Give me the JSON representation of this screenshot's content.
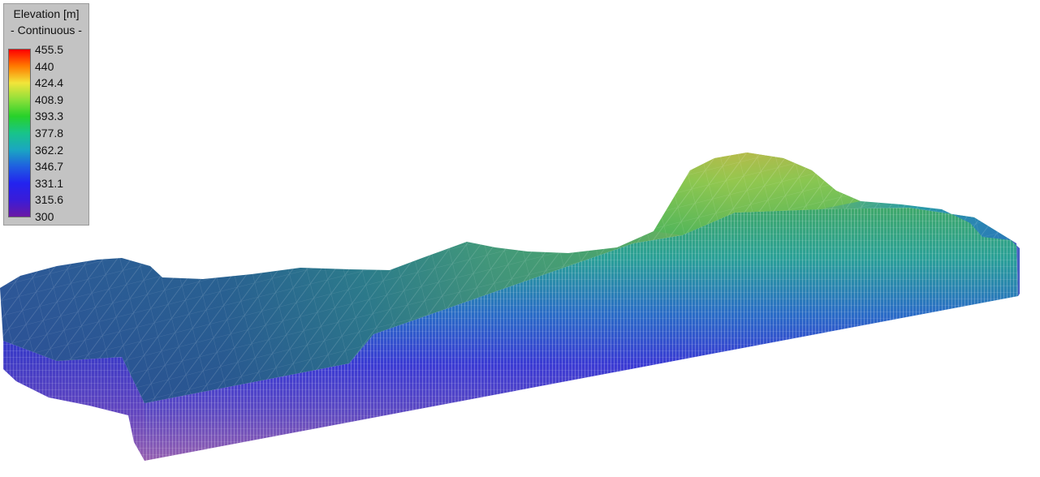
{
  "legend": {
    "title": "Elevation [m]",
    "subtitle": "- Continuous -",
    "labels": [
      "455.5",
      "440",
      "424.4",
      "408.9",
      "393.3",
      "377.8",
      "362.2",
      "346.7",
      "331.1",
      "315.6",
      "300"
    ],
    "colors": [
      "#ff0000",
      "#ff7a00",
      "#f2e53a",
      "#8ee03a",
      "#27d12a",
      "#18c48a",
      "#1aa6c2",
      "#1f5fe0",
      "#2323ef",
      "#3a1cd8",
      "#6a18a4"
    ]
  }
}
